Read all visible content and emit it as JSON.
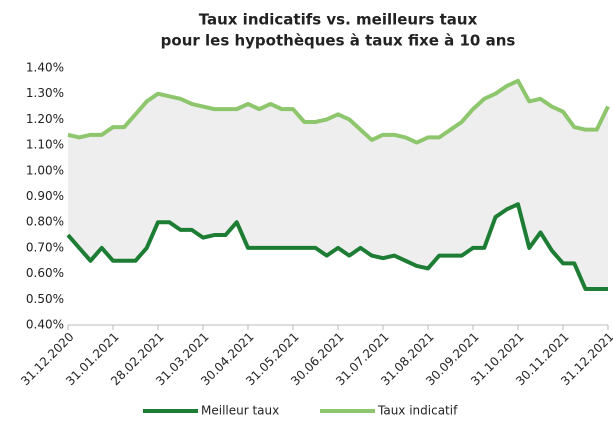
{
  "chart_data": {
    "type": "line",
    "title": [
      "Taux indicatifs vs. meilleurs taux",
      "pour les hypothèques à taux fixe à 10 ans"
    ],
    "categories": [
      "31.12.2020",
      null,
      null,
      null,
      "31.01.2021",
      null,
      null,
      null,
      "28.02.2021",
      null,
      null,
      null,
      "31.03.2021",
      null,
      null,
      null,
      "30.04.2021",
      null,
      null,
      null,
      "31.05.2021",
      null,
      null,
      null,
      "30.06.2021",
      null,
      null,
      null,
      "31.07.2021",
      null,
      null,
      null,
      "31.08.2021",
      null,
      null,
      null,
      "30.09.2021",
      null,
      null,
      null,
      "31.10.2021",
      null,
      null,
      null,
      "30.11.2021",
      null,
      null,
      null,
      "31.12.2021"
    ],
    "series": [
      {
        "name": "Meilleur taux",
        "color": "#1e7d34",
        "values": [
          0.75,
          0.7,
          0.65,
          0.7,
          0.65,
          0.65,
          0.65,
          0.7,
          0.8,
          0.8,
          0.77,
          0.77,
          0.74,
          0.75,
          0.75,
          0.8,
          0.7,
          0.7,
          0.7,
          0.7,
          0.7,
          0.7,
          0.7,
          0.67,
          0.7,
          0.67,
          0.7,
          0.67,
          0.66,
          0.67,
          0.65,
          0.63,
          0.62,
          0.67,
          0.67,
          0.67,
          0.7,
          0.7,
          0.82,
          0.85,
          0.87,
          0.7,
          0.76,
          0.69,
          0.64,
          0.64,
          0.54,
          0.54,
          0.54
        ]
      },
      {
        "name": "Taux indicatif",
        "color": "#8dc66c",
        "values": [
          1.14,
          1.13,
          1.14,
          1.14,
          1.17,
          1.17,
          1.22,
          1.27,
          1.3,
          1.29,
          1.28,
          1.26,
          1.25,
          1.24,
          1.24,
          1.24,
          1.26,
          1.24,
          1.26,
          1.24,
          1.24,
          1.19,
          1.19,
          1.2,
          1.22,
          1.2,
          1.16,
          1.12,
          1.14,
          1.14,
          1.13,
          1.11,
          1.13,
          1.13,
          1.16,
          1.19,
          1.24,
          1.28,
          1.3,
          1.33,
          1.35,
          1.27,
          1.28,
          1.25,
          1.23,
          1.17,
          1.16,
          1.16,
          1.25
        ]
      }
    ],
    "ylim": [
      0.4,
      1.4
    ],
    "yticks": [
      {
        "value": 0.4,
        "label": "0.40%"
      },
      {
        "value": 0.5,
        "label": "0.50%"
      },
      {
        "value": 0.6,
        "label": "0.60%"
      },
      {
        "value": 0.7,
        "label": "0.70%"
      },
      {
        "value": 0.8,
        "label": "0.80%"
      },
      {
        "value": 0.9,
        "label": "0.90%"
      },
      {
        "value": 1.0,
        "label": "1.00%"
      },
      {
        "value": 1.1,
        "label": "1.10%"
      },
      {
        "value": 1.2,
        "label": "1.20%"
      },
      {
        "value": 1.3,
        "label": "1.30%"
      },
      {
        "value": 1.4,
        "label": "1.40%"
      }
    ],
    "grid": false,
    "legend": "bottom"
  }
}
